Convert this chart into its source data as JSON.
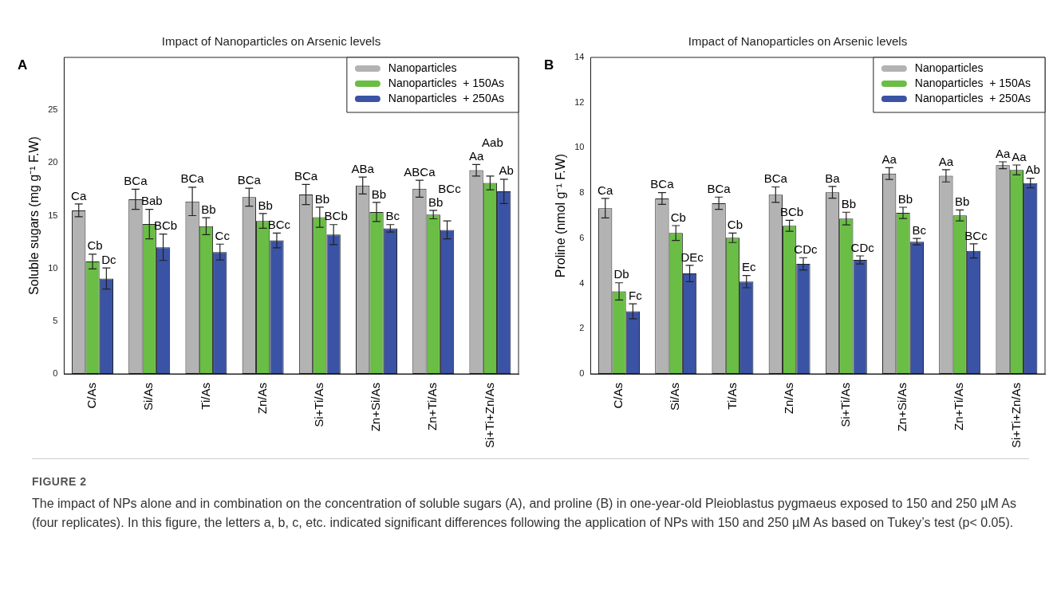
{
  "chart_data": [
    {
      "type": "bar",
      "title": "Impact of Nanoparticles on Arsenic levels",
      "ylabel": "Soluble sugars (mg g⁻¹ F.W)",
      "categories": [
        "C/As",
        "Si/As",
        "Ti/As",
        "Zn/As",
        "Si+Ti/As",
        "Zn+Si/As",
        "Zn+Ti/As",
        "Si+Ti+Zn/As"
      ],
      "series": [
        {
          "name": "Nanoparticles",
          "color": "#b3b3b3",
          "values": [
            15.5,
            16.55,
            16.35,
            16.75,
            17.0,
            17.85,
            17.55,
            19.3
          ],
          "errors": [
            0.6,
            0.95,
            1.35,
            0.85,
            0.95,
            0.8,
            0.8,
            0.55
          ],
          "value_labels": [
            "Ca",
            "BCa",
            "BCa",
            "BCa",
            "BCa",
            "ABa",
            "ABCa",
            "Aa"
          ]
        },
        {
          "name": "Nanoparticles  + 150As",
          "color": "#6abd45",
          "values": [
            10.65,
            14.2,
            14.0,
            14.5,
            14.85,
            15.35,
            15.1,
            18.1
          ],
          "errors": [
            0.7,
            1.4,
            0.8,
            0.7,
            0.95,
            0.9,
            0.4,
            0.65
          ],
          "value_labels": [
            "Cb",
            "Bab",
            "Bb",
            "Bb",
            "Bb",
            "Bb",
            "Bb",
            "Aab"
          ]
        },
        {
          "name": "Nanoparticles  + 250As",
          "color": "#3a53a4",
          "values": [
            9.04,
            12.0,
            11.55,
            12.65,
            13.2,
            13.8,
            13.65,
            17.3
          ],
          "errors": [
            1.0,
            1.25,
            0.75,
            0.7,
            0.95,
            0.35,
            0.85,
            1.15
          ],
          "value_labels": [
            "Dc",
            "BCb",
            "Cc",
            "BCc",
            "BCb",
            "Bc",
            "BCc",
            "Ab"
          ]
        }
      ],
      "ylim": [
        0,
        30
      ],
      "yticks": [
        0,
        5,
        10,
        15,
        20,
        25
      ],
      "legend": "top right",
      "annotations": [
        "A",
        "FIGURE 2",
        "The impact of NPs alone and in combination on the concentration of soluble sugars (A), and proline (B) in one-year-old Pleioblastus pygmaeus exposed to 150 and 250 µM As (four replicates). In this figure, the letters a, b, c, etc. indicated significant differences following the application of NPs with 150 and 250 µM As based on Tukey’s test (p< 0.05)."
      ]
    },
    {
      "type": "bar",
      "title": "Impact of Nanoparticles on Arsenic levels",
      "ylabel": "Proline (nmol g⁻¹ F.W)",
      "categories": [
        "C/As",
        "Si/As",
        "Ti/As",
        "Zn/As",
        "Si+Ti/As",
        "Zn+Si/As",
        "Zn+Ti/As",
        "Si+Ti+Zn/As"
      ],
      "series": [
        {
          "name": "Nanoparticles",
          "color": "#b3b3b3",
          "values": [
            7.33,
            7.76,
            7.55,
            7.93,
            8.03,
            8.86,
            8.76,
            9.23
          ],
          "errors": [
            0.43,
            0.26,
            0.27,
            0.34,
            0.26,
            0.26,
            0.27,
            0.15
          ],
          "value_labels": [
            "Ca",
            "BCa",
            "BCa",
            "BCa",
            "Ba",
            "Aa",
            "Aa",
            "Aa"
          ]
        },
        {
          "name": "Nanoparticles  + 150As",
          "color": "#6abd45",
          "values": [
            3.65,
            6.23,
            6.02,
            6.55,
            6.87,
            7.12,
            7.01,
            9.02
          ],
          "errors": [
            0.38,
            0.33,
            0.21,
            0.24,
            0.28,
            0.25,
            0.24,
            0.22
          ],
          "value_labels": [
            "Db",
            "Cb",
            "Cb",
            "BCb",
            "Bb",
            "Bb",
            "Bb",
            "Aa"
          ]
        },
        {
          "name": "Nanoparticles  + 250As",
          "color": "#3a53a4",
          "values": [
            2.77,
            4.44,
            4.08,
            4.87,
            5.04,
            5.85,
            5.44,
            8.44
          ],
          "errors": [
            0.33,
            0.36,
            0.27,
            0.27,
            0.18,
            0.14,
            0.31,
            0.21
          ],
          "value_labels": [
            "Fc",
            "DEc",
            "Ec",
            "CDc",
            "CDc",
            "Bc",
            "BCc",
            "Ab"
          ]
        }
      ],
      "ylim": [
        0,
        14
      ],
      "yticks": [
        0,
        2,
        4,
        6,
        8,
        10,
        12,
        14
      ],
      "legend": "top right",
      "annotations": [
        "B"
      ]
    }
  ]
}
